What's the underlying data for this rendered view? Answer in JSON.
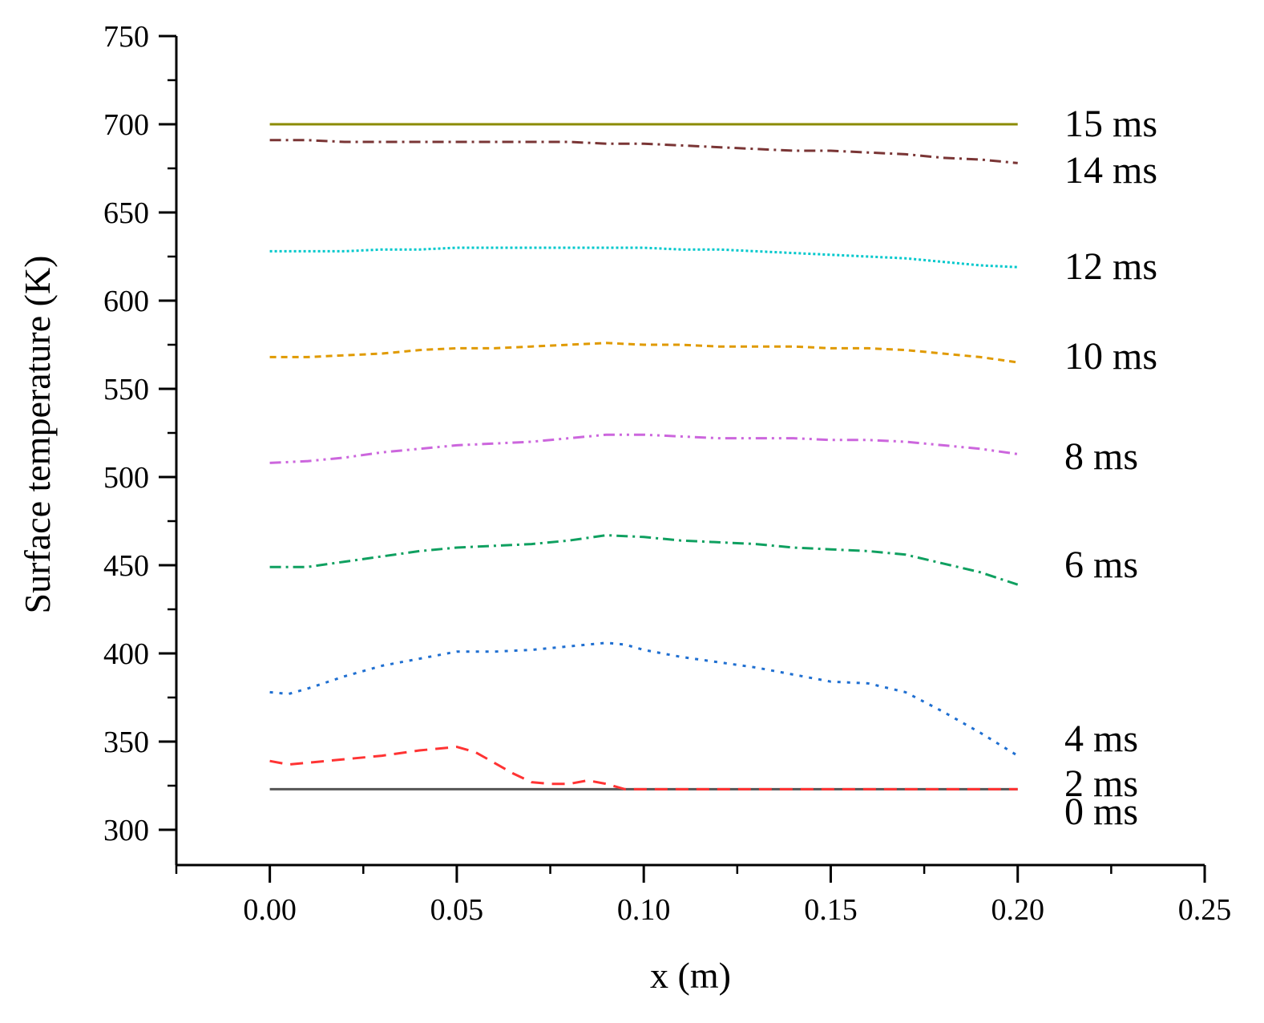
{
  "chart_data": {
    "type": "line",
    "title": "",
    "xlabel": "x (m)",
    "ylabel": "Surface temperature (K)",
    "xlim": [
      -0.025,
      0.25
    ],
    "ylim": [
      280,
      750
    ],
    "xticks": [
      0.0,
      0.05,
      0.1,
      0.15,
      0.2,
      0.25
    ],
    "xtick_labels": [
      "0.00",
      "0.05",
      "0.10",
      "0.15",
      "0.20",
      "0.25"
    ],
    "yticks": [
      300,
      350,
      400,
      450,
      500,
      550,
      600,
      650,
      700,
      750
    ],
    "ytick_labels": [
      "300",
      "350",
      "400",
      "450",
      "500",
      "550",
      "600",
      "650",
      "700",
      "750"
    ],
    "grid": false,
    "series": [
      {
        "name": "0 ms",
        "color": "#555555",
        "dash": "solid",
        "x": [
          0.0,
          0.2
        ],
        "y": [
          323,
          323
        ]
      },
      {
        "name": "2 ms",
        "color": "#ff3333",
        "dash": "dash",
        "x": [
          0.0,
          0.005,
          0.01,
          0.02,
          0.03,
          0.04,
          0.05,
          0.055,
          0.06,
          0.065,
          0.07,
          0.075,
          0.08,
          0.085,
          0.09,
          0.095,
          0.1,
          0.15,
          0.2
        ],
        "y": [
          339,
          337,
          338,
          340,
          342,
          345,
          347,
          344,
          338,
          332,
          327,
          326,
          326,
          328,
          326,
          323,
          323,
          323,
          323
        ]
      },
      {
        "name": "4 ms",
        "color": "#1f6fd1",
        "dash": "dot",
        "x": [
          0.0,
          0.005,
          0.01,
          0.02,
          0.03,
          0.04,
          0.05,
          0.06,
          0.07,
          0.08,
          0.09,
          0.095,
          0.1,
          0.11,
          0.12,
          0.13,
          0.14,
          0.15,
          0.16,
          0.17,
          0.18,
          0.19,
          0.2
        ],
        "y": [
          378,
          377,
          380,
          387,
          393,
          397,
          401,
          401,
          402,
          404,
          406,
          405,
          402,
          398,
          395,
          392,
          388,
          384,
          383,
          378,
          367,
          355,
          342
        ]
      },
      {
        "name": "6 ms",
        "color": "#0fa060",
        "dash": "dashdot",
        "x": [
          0.0,
          0.01,
          0.02,
          0.03,
          0.04,
          0.05,
          0.06,
          0.07,
          0.08,
          0.09,
          0.1,
          0.11,
          0.12,
          0.13,
          0.14,
          0.15,
          0.16,
          0.17,
          0.18,
          0.19,
          0.2
        ],
        "y": [
          449,
          449,
          452,
          455,
          458,
          460,
          461,
          462,
          464,
          467,
          466,
          464,
          463,
          462,
          460,
          459,
          458,
          456,
          451,
          446,
          439
        ]
      },
      {
        "name": "8 ms",
        "color": "#cc66dd",
        "dash": "dashdotdot",
        "x": [
          0.0,
          0.01,
          0.02,
          0.03,
          0.04,
          0.05,
          0.06,
          0.07,
          0.08,
          0.09,
          0.1,
          0.11,
          0.12,
          0.13,
          0.14,
          0.15,
          0.16,
          0.17,
          0.18,
          0.19,
          0.2
        ],
        "y": [
          508,
          509,
          511,
          514,
          516,
          518,
          519,
          520,
          522,
          524,
          524,
          523,
          522,
          522,
          522,
          521,
          521,
          520,
          518,
          516,
          513
        ]
      },
      {
        "name": "10 ms",
        "color": "#e09a00",
        "dash": "shortdash",
        "x": [
          0.0,
          0.01,
          0.02,
          0.03,
          0.04,
          0.05,
          0.06,
          0.07,
          0.08,
          0.09,
          0.1,
          0.11,
          0.12,
          0.13,
          0.14,
          0.15,
          0.16,
          0.17,
          0.18,
          0.19,
          0.2
        ],
        "y": [
          568,
          568,
          569,
          570,
          572,
          573,
          573,
          574,
          575,
          576,
          575,
          575,
          574,
          574,
          574,
          573,
          573,
          572,
          570,
          568,
          565
        ]
      },
      {
        "name": "12 ms",
        "color": "#00c8cc",
        "dash": "densedot",
        "x": [
          0.0,
          0.01,
          0.02,
          0.03,
          0.04,
          0.05,
          0.06,
          0.07,
          0.08,
          0.09,
          0.1,
          0.11,
          0.12,
          0.13,
          0.14,
          0.15,
          0.16,
          0.17,
          0.18,
          0.19,
          0.2
        ],
        "y": [
          628,
          628,
          628,
          629,
          629,
          630,
          630,
          630,
          630,
          630,
          630,
          629,
          629,
          628,
          627,
          626,
          625,
          624,
          622,
          620,
          619
        ]
      },
      {
        "name": "14 ms",
        "color": "#7a3535",
        "dash": "dashdot",
        "x": [
          0.0,
          0.01,
          0.02,
          0.03,
          0.04,
          0.05,
          0.06,
          0.07,
          0.08,
          0.09,
          0.1,
          0.11,
          0.12,
          0.13,
          0.14,
          0.15,
          0.16,
          0.17,
          0.18,
          0.19,
          0.2
        ],
        "y": [
          691,
          691,
          690,
          690,
          690,
          690,
          690,
          690,
          690,
          689,
          689,
          688,
          687,
          686,
          685,
          685,
          684,
          683,
          681,
          680,
          678
        ]
      },
      {
        "name": "15 ms",
        "color": "#8b8b00",
        "dash": "solid",
        "x": [
          0.0,
          0.05,
          0.1,
          0.15,
          0.2
        ],
        "y": [
          700,
          700,
          700,
          700,
          700
        ]
      }
    ],
    "annotations": [
      "15 ms",
      "14 ms",
      "12 ms",
      "10 ms",
      "8 ms",
      "6 ms",
      "4 ms",
      "2 ms",
      "0 ms"
    ]
  }
}
